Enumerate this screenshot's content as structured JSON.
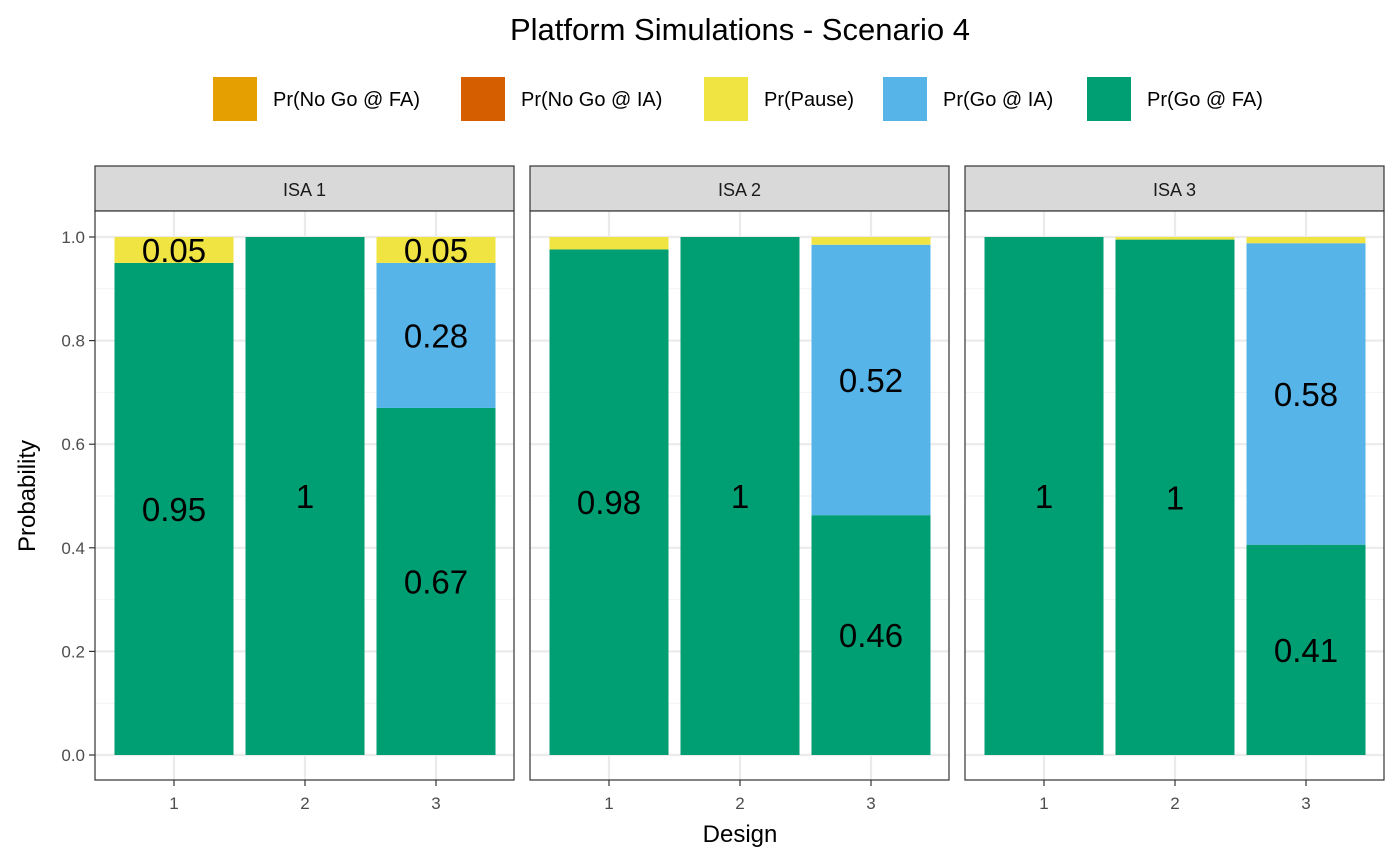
{
  "chart_data": {
    "type": "bar",
    "stacked": true,
    "title": "Platform Simulations - Scenario  4",
    "xlabel": "Design",
    "ylabel": "Probability",
    "ylim": [
      0,
      1
    ],
    "yticks": [
      "0.0",
      "0.2",
      "0.4",
      "0.6",
      "0.8",
      "1.0"
    ],
    "ytick_values": [
      0,
      0.2,
      0.4,
      0.6,
      0.8,
      1.0
    ],
    "legend_position": "top",
    "grid": true,
    "categories": [
      "1",
      "2",
      "3"
    ],
    "legend": [
      {
        "name": "Pr(No Go @ FA)",
        "color": "#E69F00"
      },
      {
        "name": "Pr(No Go @ IA)",
        "color": "#D55E00"
      },
      {
        "name": "Pr(Pause)",
        "color": "#F0E442"
      },
      {
        "name": "Pr(Go @ IA)",
        "color": "#56B4E9"
      },
      {
        "name": "Pr(Go @ FA)",
        "color": "#009E73"
      }
    ],
    "panels": [
      {
        "name": "ISA 1",
        "series": [
          {
            "name": "Pr(Go @ FA)",
            "values": [
              0.95,
              1.0,
              0.67
            ],
            "labels": [
              "0.95",
              "1",
              "0.67"
            ]
          },
          {
            "name": "Pr(Go @ IA)",
            "values": [
              0,
              0,
              0.28
            ],
            "labels": [
              "",
              "",
              "0.28"
            ]
          },
          {
            "name": "Pr(Pause)",
            "values": [
              0.05,
              0,
              0.05
            ],
            "labels": [
              "0.05",
              "",
              "0.05"
            ]
          },
          {
            "name": "Pr(No Go @ IA)",
            "values": [
              0,
              0,
              0
            ],
            "labels": [
              "",
              "",
              ""
            ]
          },
          {
            "name": "Pr(No Go @ FA)",
            "values": [
              0,
              0,
              0
            ],
            "labels": [
              "",
              "",
              ""
            ]
          }
        ]
      },
      {
        "name": "ISA 2",
        "series": [
          {
            "name": "Pr(Go @ FA)",
            "values": [
              0.976,
              1.0,
              0.463
            ],
            "labels": [
              "0.98",
              "1",
              "0.46"
            ]
          },
          {
            "name": "Pr(Go @ IA)",
            "values": [
              0,
              0,
              0.522
            ],
            "labels": [
              "",
              "",
              "0.52"
            ]
          },
          {
            "name": "Pr(Pause)",
            "values": [
              0.024,
              0,
              0.015
            ],
            "labels": [
              "",
              "",
              ""
            ]
          },
          {
            "name": "Pr(No Go @ IA)",
            "values": [
              0,
              0,
              0
            ],
            "labels": [
              "",
              "",
              ""
            ]
          },
          {
            "name": "Pr(No Go @ FA)",
            "values": [
              0,
              0,
              0
            ],
            "labels": [
              "",
              "",
              ""
            ]
          }
        ]
      },
      {
        "name": "ISA 3",
        "series": [
          {
            "name": "Pr(Go @ FA)",
            "values": [
              1.0,
              0.995,
              0.406
            ],
            "labels": [
              "1",
              "1",
              "0.41"
            ]
          },
          {
            "name": "Pr(Go @ IA)",
            "values": [
              0,
              0,
              0.582
            ],
            "labels": [
              "",
              "",
              "0.58"
            ]
          },
          {
            "name": "Pr(Pause)",
            "values": [
              0,
              0.005,
              0.012
            ],
            "labels": [
              "",
              "",
              ""
            ]
          },
          {
            "name": "Pr(No Go @ IA)",
            "values": [
              0,
              0,
              0
            ],
            "labels": [
              "",
              "",
              ""
            ]
          },
          {
            "name": "Pr(No Go @ FA)",
            "values": [
              0,
              0,
              0
            ],
            "labels": [
              "",
              "",
              ""
            ]
          }
        ]
      }
    ]
  }
}
